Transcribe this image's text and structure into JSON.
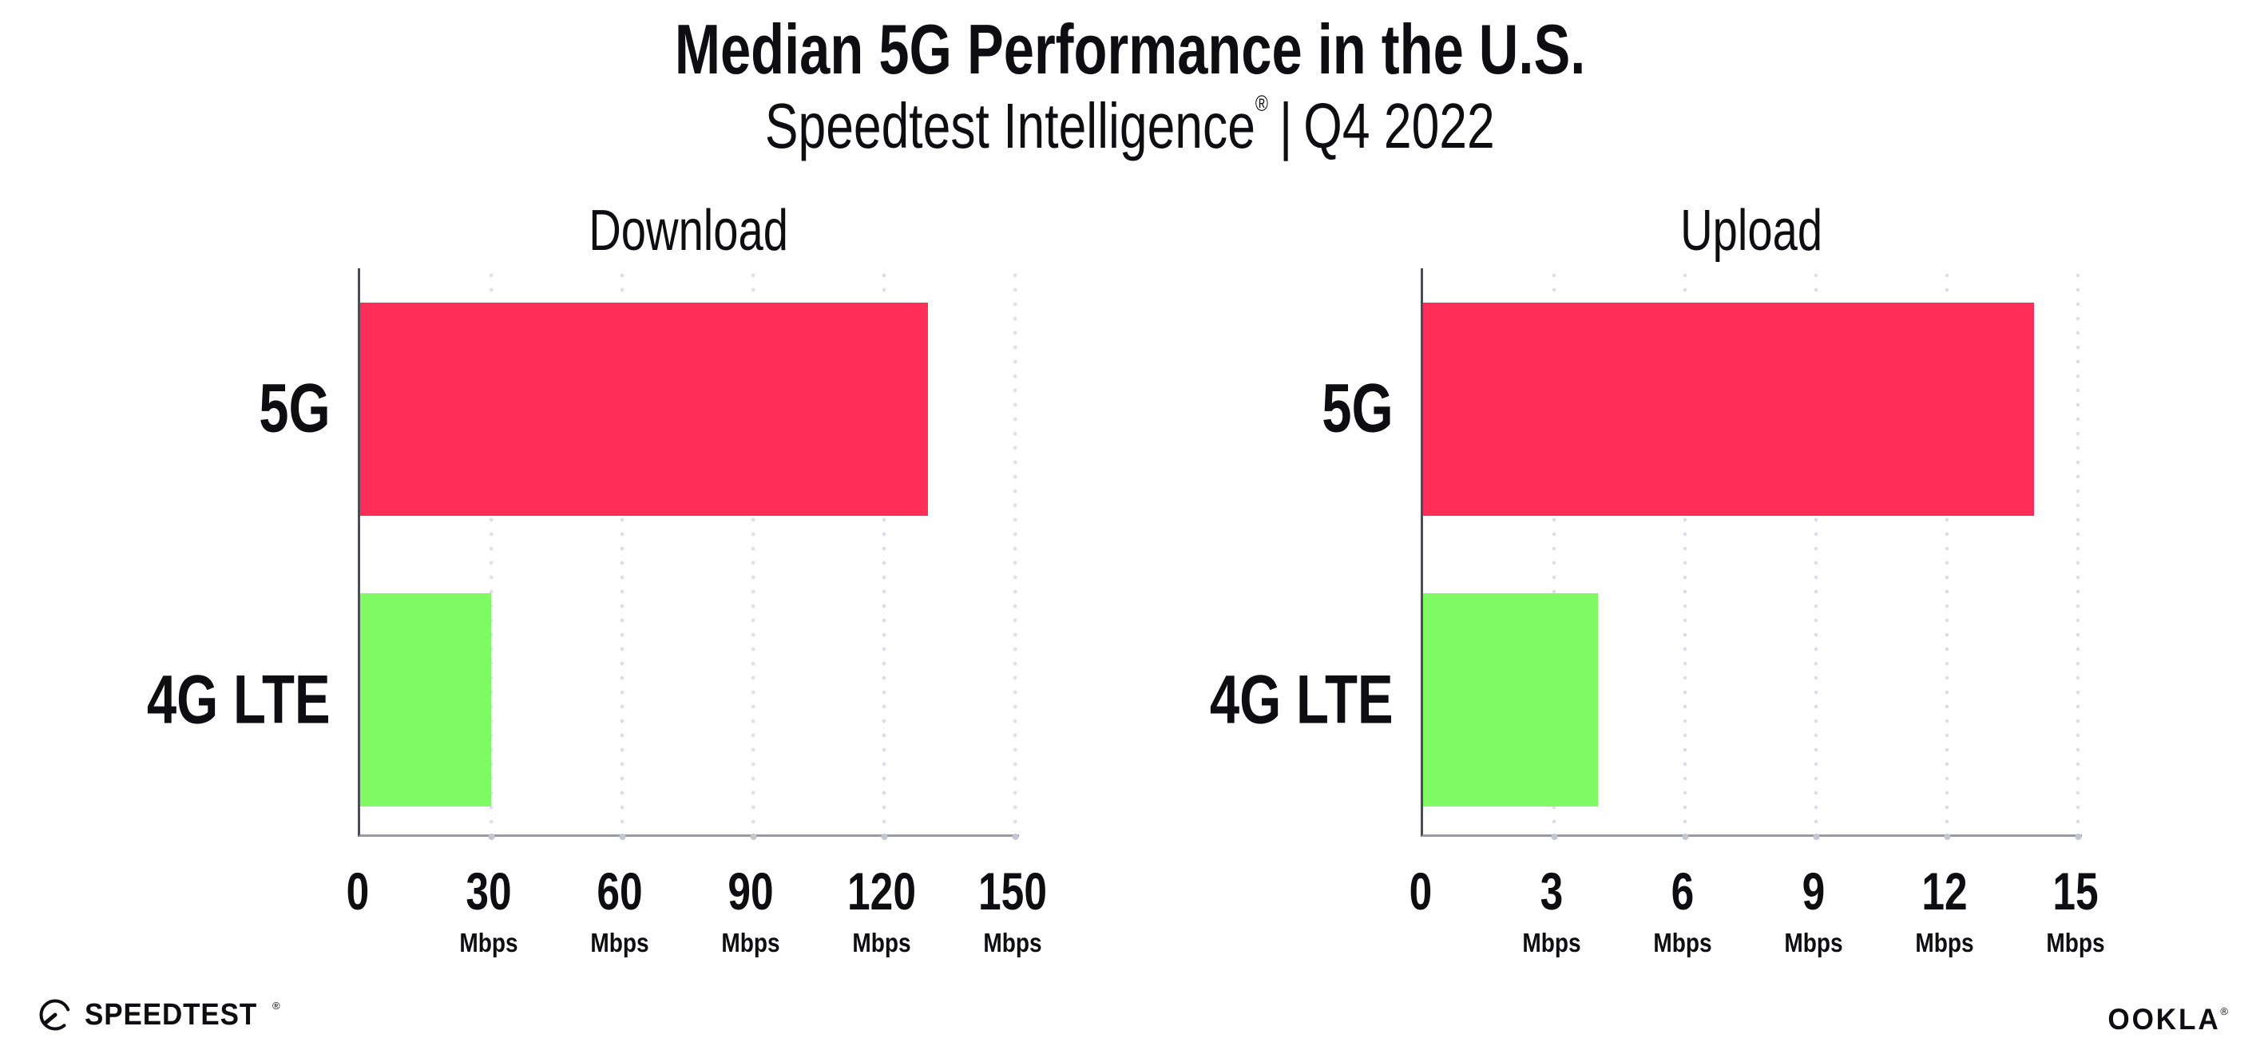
{
  "header": {
    "title": "Median 5G Performance in the U.S.",
    "subtitle": {
      "brand": "Speedtest Intelligence",
      "registered": "®",
      "separator": "|",
      "period": "Q4 2022"
    }
  },
  "footer": {
    "speedtest": {
      "label": "SPEEDTEST",
      "registered": "®",
      "icon": "speedtest-gauge-icon"
    },
    "ookla": {
      "label": "OOKLA",
      "registered": "®"
    }
  },
  "colors": {
    "bar_5g": "#FF2E59",
    "bar_4g_lte": "#80FA64",
    "y_axis": "#4c4c54",
    "x_axis": "#9a9aa2",
    "grid_dot": "#dedee9",
    "text": "#0d0d12"
  },
  "chart_data": [
    {
      "type": "bar",
      "orientation": "horizontal",
      "title": "Download",
      "categories": [
        "5G",
        "4G LTE"
      ],
      "values": [
        130,
        30
      ],
      "unit": "Mbps",
      "ticks": [
        0,
        30,
        60,
        90,
        120,
        150
      ],
      "xlim": [
        0,
        151.5
      ],
      "grid": "dotted-vertical",
      "legend": "none",
      "bar_colors": [
        "#FF2E59",
        "#80FA64"
      ]
    },
    {
      "type": "bar",
      "orientation": "horizontal",
      "title": "Upload",
      "categories": [
        "5G",
        "4G LTE"
      ],
      "values": [
        14,
        4
      ],
      "unit": "Mbps",
      "ticks": [
        0,
        3,
        6,
        9,
        12,
        15
      ],
      "xlim": [
        0,
        15.15
      ],
      "grid": "dotted-vertical",
      "legend": "none",
      "bar_colors": [
        "#FF2E59",
        "#80FA64"
      ]
    }
  ]
}
